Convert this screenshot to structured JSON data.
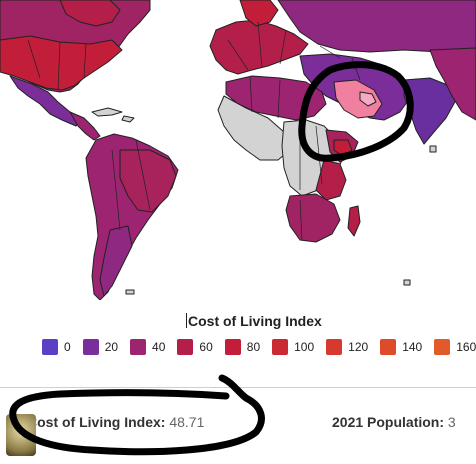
{
  "legend": {
    "title": "Cost of Living Index",
    "stops": [
      {
        "label": "0",
        "color": "#5b3fc4"
      },
      {
        "label": "20",
        "color": "#7b2d9a"
      },
      {
        "label": "40",
        "color": "#9c2470"
      },
      {
        "label": "60",
        "color": "#b41f4a"
      },
      {
        "label": "80",
        "color": "#c21e3a"
      },
      {
        "label": "100",
        "color": "#cc2a33"
      },
      {
        "label": "120",
        "color": "#d6392f"
      },
      {
        "label": "140",
        "color": "#de4a2c"
      },
      {
        "label": "160",
        "color": "#e25a2a"
      }
    ]
  },
  "selected_country": {
    "cost_label": "Cost of Living Index:",
    "cost_value": "48.71",
    "population_label": "2021 Population:",
    "population_value": "3"
  },
  "colors": {
    "no_data": "#d3d3d3",
    "highlight": "#f07fa0",
    "highlight_light": "#f6a9c2",
    "annotation_ink": "#000000"
  }
}
